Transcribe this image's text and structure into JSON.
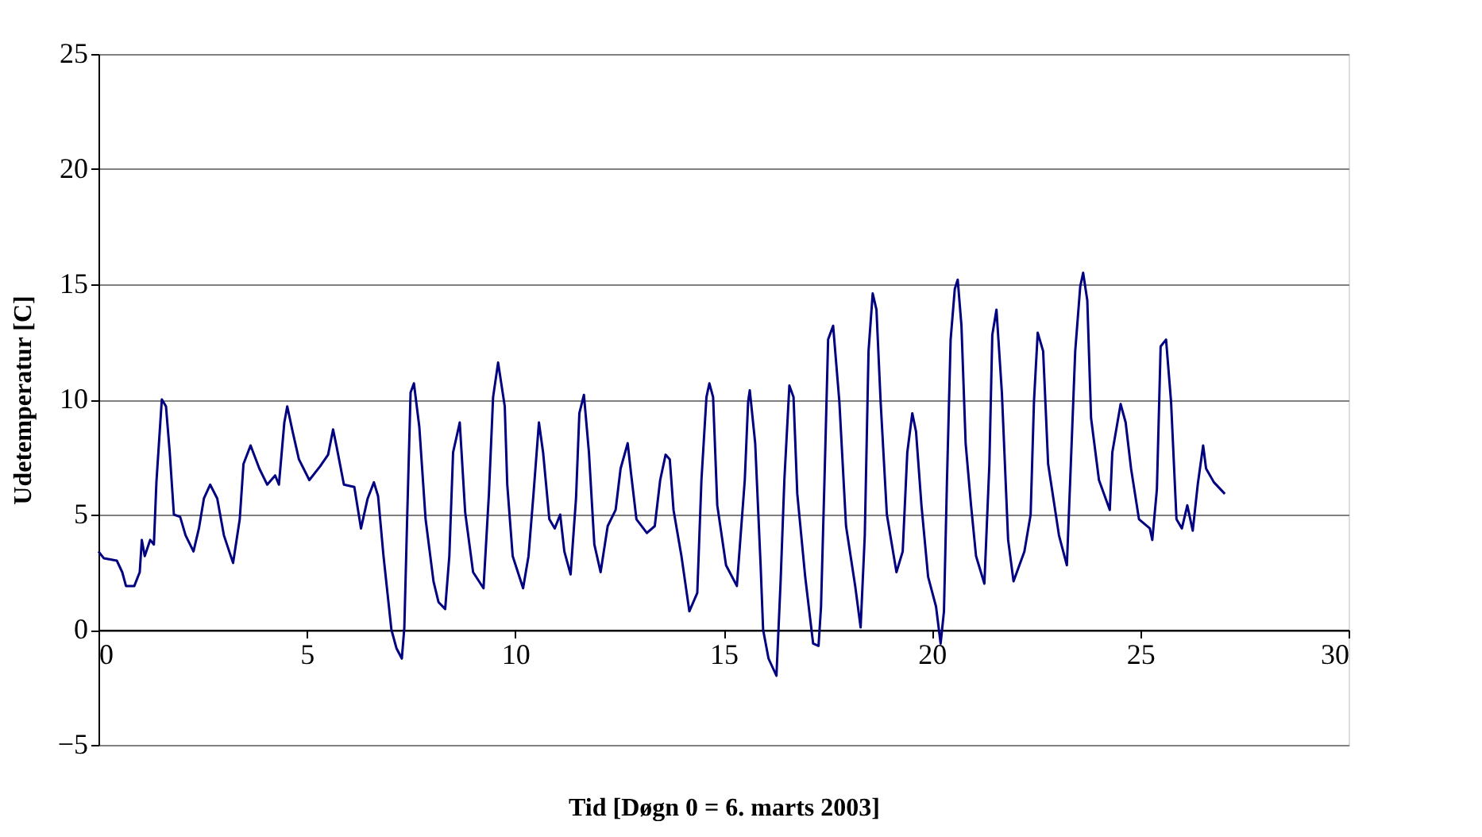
{
  "chart_data": {
    "type": "line",
    "xlabel": "Tid [Døgn 0 = 6. marts 2003]",
    "ylabel": "Udetemperatur [C]",
    "xlim": [
      0,
      30
    ],
    "xticks": [
      0,
      5,
      10,
      15,
      20,
      25,
      30
    ],
    "ylim": [
      -5,
      25
    ],
    "yticks": [
      -5,
      0,
      5,
      10,
      15,
      20,
      25
    ],
    "grid": "y",
    "marker": "none",
    "line_style": "solid",
    "series": [
      {
        "color": "#000080",
        "x": [
          0,
          0.13,
          0.44,
          0.57,
          0.66,
          0.86,
          0.99,
          1.04,
          1.11,
          1.24,
          1.33,
          1.39,
          1.52,
          1.62,
          1.71,
          1.81,
          1.96,
          2.09,
          2.28,
          2.41,
          2.53,
          2.68,
          2.85,
          3.01,
          3.23,
          3.39,
          3.48,
          3.65,
          3.86,
          4.05,
          4.24,
          4.33,
          4.46,
          4.53,
          4.66,
          4.81,
          5.06,
          5.32,
          5.51,
          5.63,
          5.72,
          5.89,
          6.14,
          6.3,
          6.46,
          6.61,
          6.71,
          6.84,
          7.03,
          7.15,
          7.28,
          7.34,
          7.41,
          7.49,
          7.57,
          7.7,
          7.85,
          8.04,
          8.16,
          8.32,
          8.42,
          8.51,
          8.67,
          8.8,
          8.99,
          9.24,
          9.37,
          9.47,
          9.59,
          9.75,
          9.81,
          9.94,
          10.19,
          10.32,
          10.44,
          10.57,
          10.67,
          10.82,
          10.95,
          11.08,
          11.18,
          11.33,
          11.46,
          11.54,
          11.65,
          11.77,
          11.9,
          12.05,
          12.22,
          12.41,
          12.53,
          12.7,
          12.78,
          12.91,
          13.16,
          13.35,
          13.48,
          13.61,
          13.71,
          13.8,
          13.99,
          14.18,
          14.37,
          14.47,
          14.59,
          14.66,
          14.75,
          14.85,
          15.06,
          15.32,
          15.51,
          15.59,
          15.63,
          15.76,
          15.89,
          15.95,
          16.08,
          16.27,
          16.37,
          16.46,
          16.58,
          16.68,
          16.77,
          16.96,
          17.15,
          17.28,
          17.34,
          17.43,
          17.51,
          17.63,
          17.78,
          17.94,
          18.16,
          18.29,
          18.39,
          18.48,
          18.58,
          18.67,
          18.77,
          18.92,
          19.15,
          19.3,
          19.41,
          19.53,
          19.62,
          19.75,
          19.91,
          20.1,
          20.21,
          20.29,
          20.36,
          20.45,
          20.55,
          20.62,
          20.71,
          20.81,
          20.94,
          21.06,
          21.26,
          21.38,
          21.45,
          21.55,
          21.68,
          21.83,
          21.96,
          22.22,
          22.37,
          22.45,
          22.54,
          22.67,
          22.79,
          23.05,
          23.24,
          23.35,
          23.44,
          23.56,
          23.63,
          23.73,
          23.82,
          24.01,
          24.27,
          24.33,
          24.53,
          24.65,
          24.78,
          24.97,
          25.23,
          25.29,
          25.4,
          25.49,
          25.62,
          25.74,
          25.87,
          26.0,
          26.13,
          26.26,
          26.38,
          26.51,
          26.58,
          26.77,
          27.03
        ],
        "values": [
          3.4,
          3.1,
          3.0,
          2.5,
          1.9,
          1.9,
          2.5,
          3.9,
          3.2,
          3.9,
          3.7,
          6.4,
          10.0,
          9.7,
          7.7,
          5.0,
          4.9,
          4.1,
          3.4,
          4.4,
          5.7,
          6.3,
          5.7,
          4.1,
          2.9,
          4.8,
          7.2,
          8.0,
          7.0,
          6.3,
          6.7,
          6.3,
          9.0,
          9.7,
          8.6,
          7.4,
          6.5,
          7.1,
          7.6,
          8.7,
          7.9,
          6.3,
          6.2,
          4.4,
          5.7,
          6.4,
          5.8,
          3.2,
          0,
          -0.8,
          -1.25,
          0.1,
          5.0,
          10.3,
          10.7,
          8.8,
          4.8,
          2.1,
          1.2,
          0.9,
          3.2,
          7.7,
          9.0,
          5.1,
          2.5,
          1.8,
          5.9,
          10.1,
          11.6,
          9.7,
          6.3,
          3.2,
          1.8,
          3.2,
          5.9,
          9.0,
          7.7,
          4.8,
          4.4,
          5.0,
          3.4,
          2.4,
          5.7,
          9.4,
          10.2,
          7.7,
          3.7,
          2.5,
          4.5,
          5.2,
          7.0,
          8.1,
          6.8,
          4.8,
          4.2,
          4.5,
          6.5,
          7.6,
          7.4,
          5.2,
          3.2,
          0.8,
          1.6,
          6.5,
          10.1,
          10.7,
          10.1,
          5.4,
          2.8,
          1.9,
          6.5,
          9.9,
          10.4,
          8.1,
          2.8,
          0,
          -1.25,
          -2.0,
          2.1,
          6.5,
          10.6,
          10.1,
          5.9,
          2.3,
          -0.6,
          -0.7,
          1.0,
          7.0,
          12.6,
          13.2,
          9.9,
          4.5,
          1.9,
          0.1,
          4.1,
          12.1,
          14.6,
          13.9,
          9.9,
          5.0,
          2.5,
          3.4,
          7.7,
          9.4,
          8.6,
          5.4,
          2.3,
          1.0,
          -0.6,
          0.8,
          6.3,
          12.6,
          14.8,
          15.2,
          13.2,
          8.1,
          5.4,
          3.2,
          2.0,
          7.2,
          12.8,
          13.9,
          10.3,
          3.9,
          2.1,
          3.4,
          5.0,
          9.9,
          12.9,
          12.1,
          7.2,
          4.1,
          2.8,
          7.9,
          12.1,
          14.9,
          15.5,
          14.3,
          9.2,
          6.5,
          5.2,
          7.7,
          9.8,
          9.0,
          7.0,
          4.8,
          4.4,
          3.9,
          6.1,
          12.3,
          12.6,
          9.9,
          4.8,
          4.4,
          5.4,
          4.3,
          6.3,
          8.0,
          7.0,
          6.4,
          5.9
        ]
      }
    ]
  }
}
